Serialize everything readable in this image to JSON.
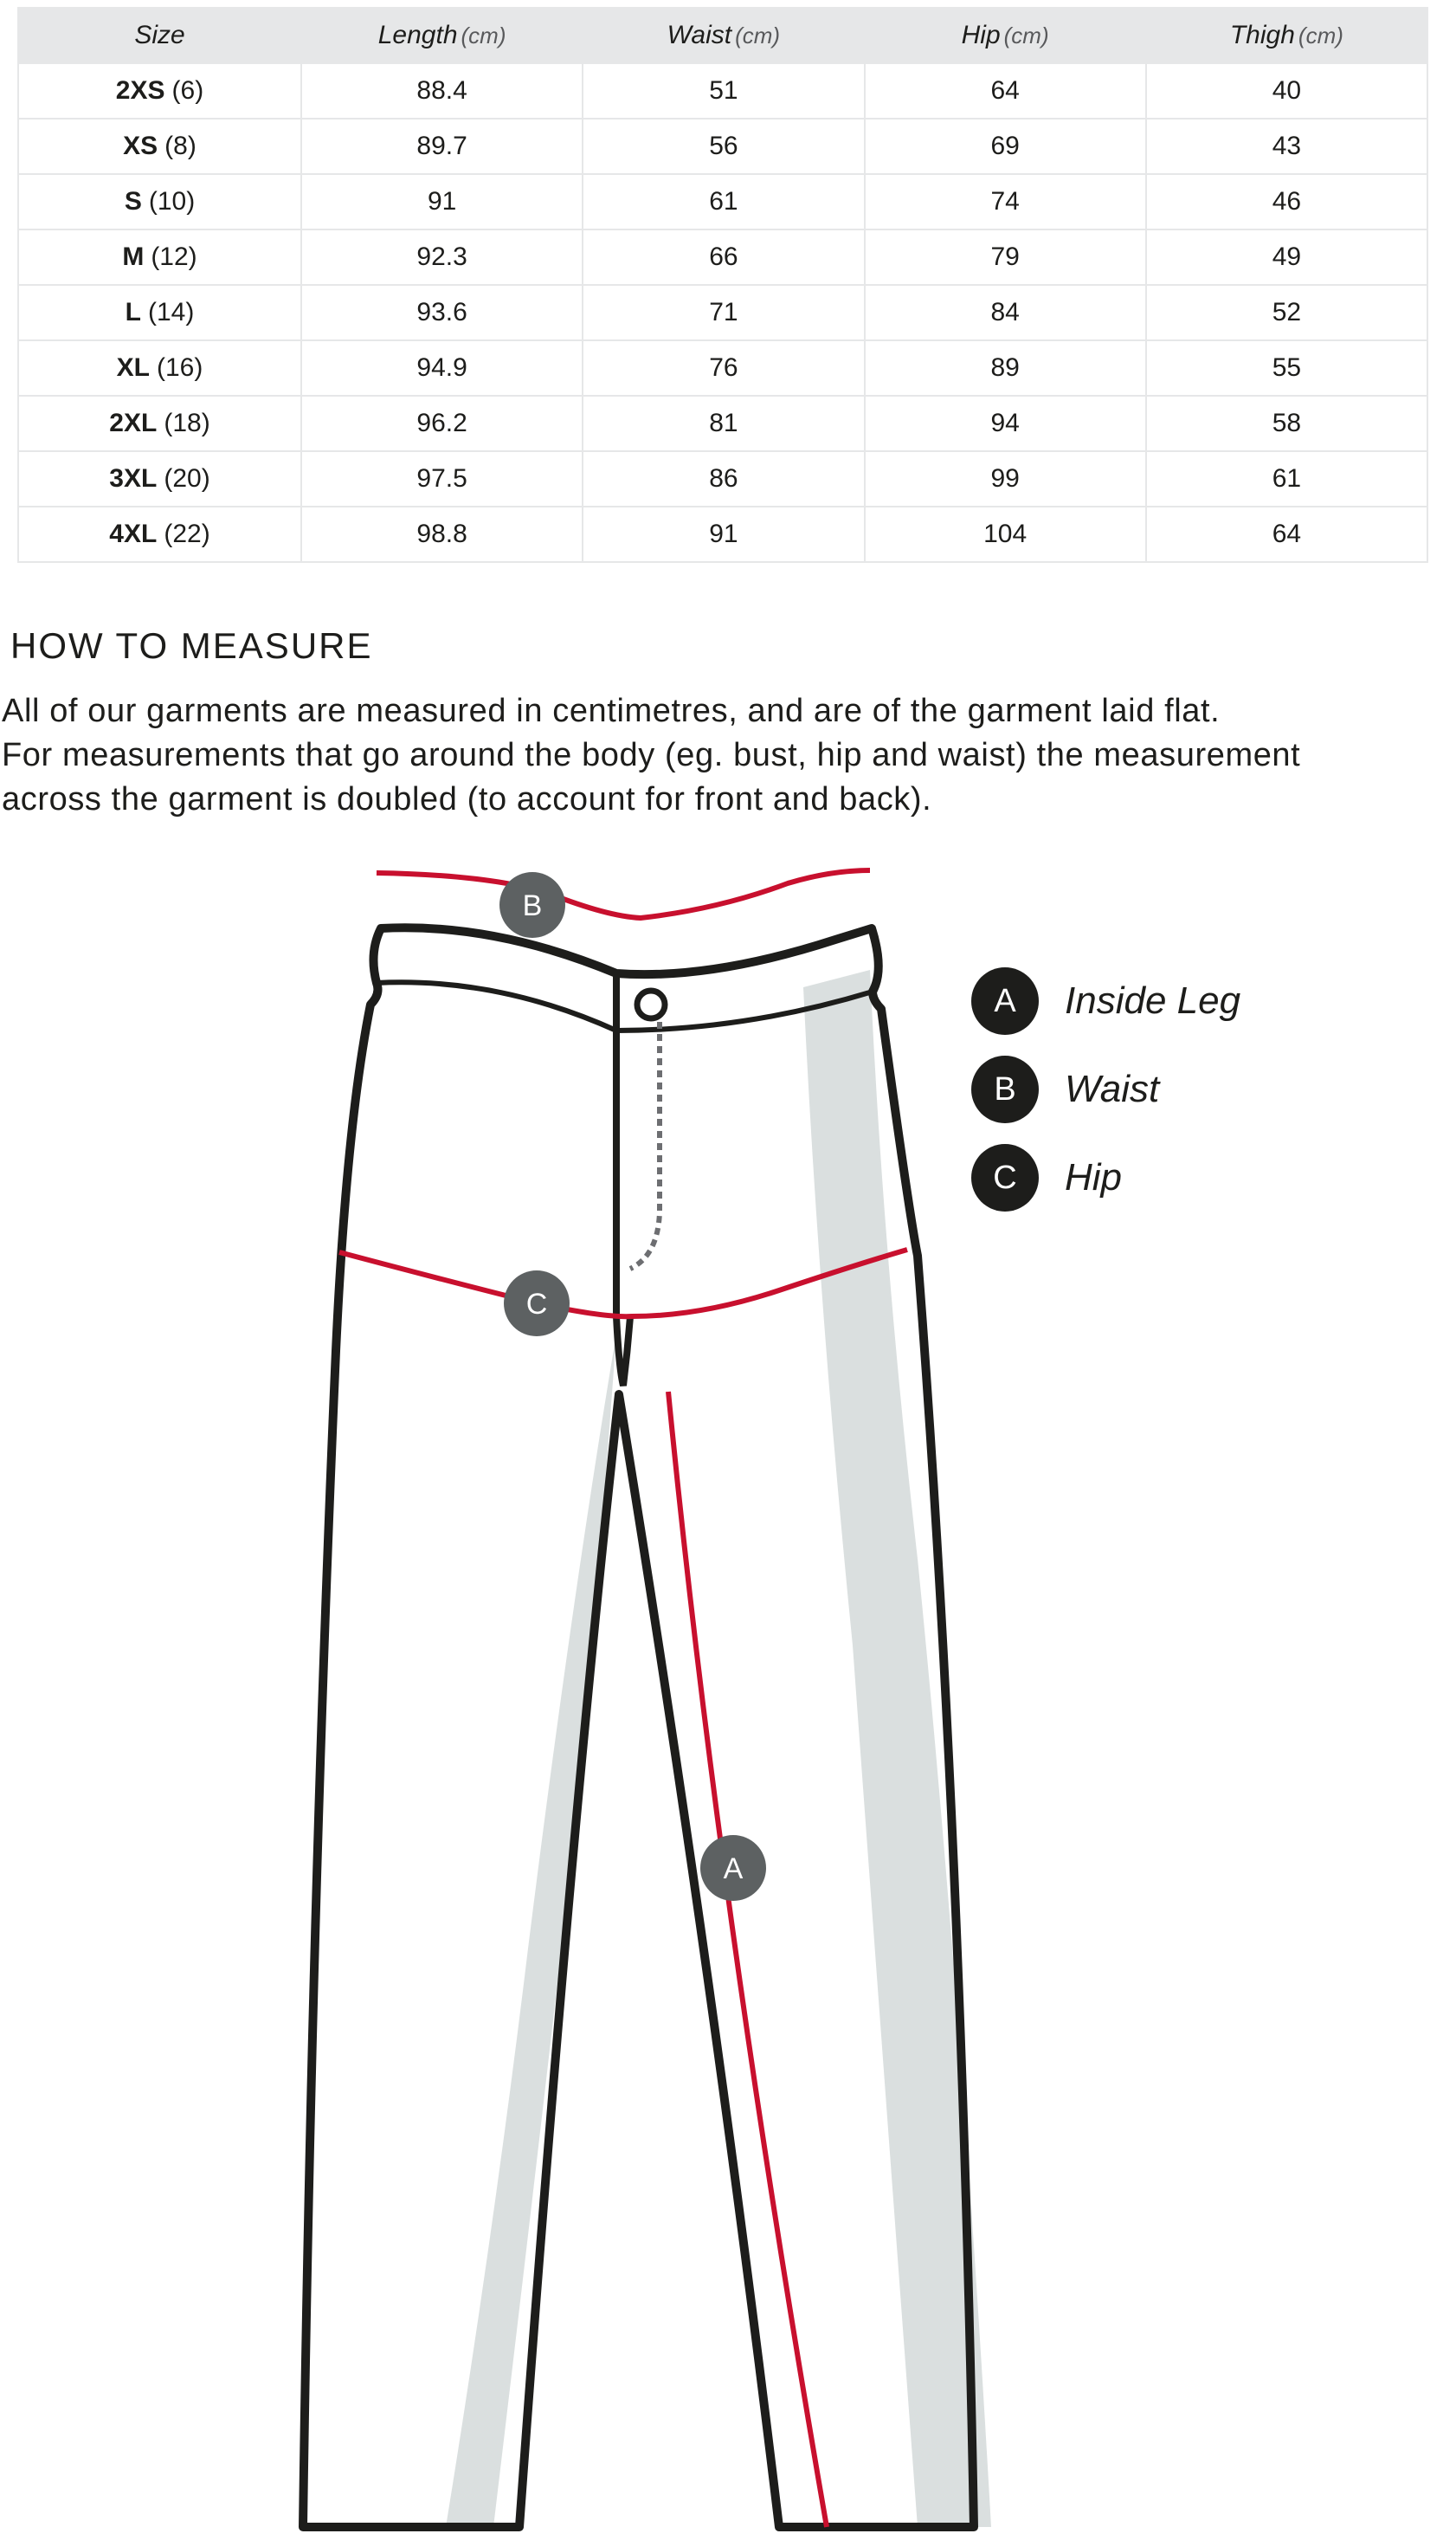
{
  "size_table": {
    "headers": [
      {
        "label": "Size",
        "unit": ""
      },
      {
        "label": "Length",
        "unit": "(cm)"
      },
      {
        "label": "Waist",
        "unit": "(cm)"
      },
      {
        "label": "Hip",
        "unit": "(cm)"
      },
      {
        "label": "Thigh",
        "unit": "(cm)"
      }
    ],
    "rows": [
      {
        "size": "2XS",
        "eu": "(6)",
        "length": "88.4",
        "waist": "51",
        "hip": "64",
        "thigh": "40"
      },
      {
        "size": "XS",
        "eu": "(8)",
        "length": "89.7",
        "waist": "56",
        "hip": "69",
        "thigh": "43"
      },
      {
        "size": "S",
        "eu": "(10)",
        "length": "91",
        "waist": "61",
        "hip": "74",
        "thigh": "46"
      },
      {
        "size": "M",
        "eu": "(12)",
        "length": "92.3",
        "waist": "66",
        "hip": "79",
        "thigh": "49"
      },
      {
        "size": "L",
        "eu": "(14)",
        "length": "93.6",
        "waist": "71",
        "hip": "84",
        "thigh": "52"
      },
      {
        "size": "XL",
        "eu": "(16)",
        "length": "94.9",
        "waist": "76",
        "hip": "89",
        "thigh": "55"
      },
      {
        "size": "2XL",
        "eu": "(18)",
        "length": "96.2",
        "waist": "81",
        "hip": "94",
        "thigh": "58"
      },
      {
        "size": "3XL",
        "eu": "(20)",
        "length": "97.5",
        "waist": "86",
        "hip": "99",
        "thigh": "61"
      },
      {
        "size": "4XL",
        "eu": "(22)",
        "length": "98.8",
        "waist": "91",
        "hip": "104",
        "thigh": "64"
      }
    ]
  },
  "how_to_measure": {
    "title": "HOW TO MEASURE",
    "lines": [
      "All of our garments are measured in centimetres, and are of the garment laid flat.",
      "For measurements that go around the body (eg. bust, hip and waist) the measurement",
      "across the garment is doubled (to account for front and back)."
    ]
  },
  "diagram": {
    "markers": {
      "a": "A",
      "b": "B",
      "c": "C"
    },
    "legend": [
      {
        "letter": "A",
        "label": "Inside Leg"
      },
      {
        "letter": "B",
        "label": "Waist"
      },
      {
        "letter": "C",
        "label": "Hip"
      }
    ],
    "colors": {
      "outline": "#1d1d1b",
      "measure_line": "#c8102e",
      "shade": "#dadfdf",
      "marker": "#5d6162",
      "table_header": "#e6e7e8"
    }
  }
}
